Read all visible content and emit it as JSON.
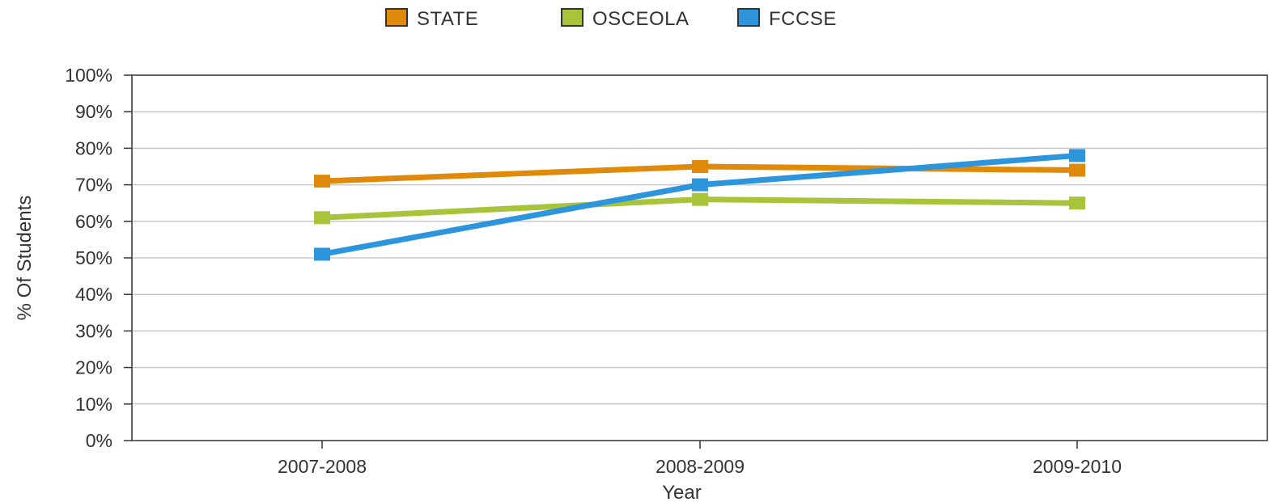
{
  "chart_data": {
    "type": "line",
    "title": "",
    "xlabel": "Year",
    "ylabel": "% Of Students",
    "categories": [
      "2007-2008",
      "2008-2009",
      "2009-2010"
    ],
    "ylim": [
      0,
      100
    ],
    "yticks": [
      "0%",
      "10%",
      "20%",
      "30%",
      "40%",
      "50%",
      "60%",
      "70%",
      "80%",
      "90%",
      "100%"
    ],
    "grid": true,
    "legend_position": "top",
    "series": [
      {
        "name": "STATE",
        "color": "#e08a0b",
        "values": [
          71,
          75,
          74
        ]
      },
      {
        "name": "OSCEOLA",
        "color": "#a8c43a",
        "values": [
          61,
          66,
          65
        ]
      },
      {
        "name": "FCCSE",
        "color": "#2d95dc",
        "values": [
          51,
          70,
          78
        ]
      }
    ]
  }
}
